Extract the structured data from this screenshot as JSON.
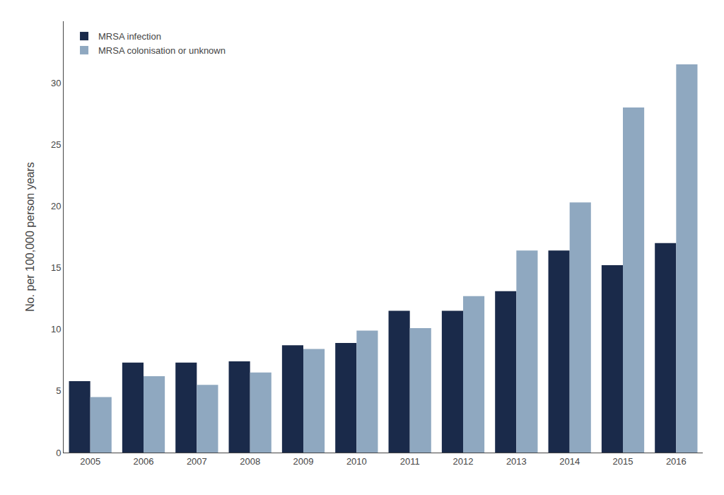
{
  "chart_data": {
    "type": "bar",
    "categories": [
      "2005",
      "2006",
      "2007",
      "2008",
      "2009",
      "2010",
      "2011",
      "2012",
      "2013",
      "2014",
      "2015",
      "2016"
    ],
    "series": [
      {
        "name": "MRSA infection",
        "color": "#1a2a4a",
        "values": [
          5.8,
          7.3,
          7.3,
          7.4,
          8.7,
          8.9,
          11.5,
          11.5,
          13.1,
          16.4,
          15.2,
          17.0
        ]
      },
      {
        "name": "MRSA colonisation or unknown",
        "color": "#8fa8c0",
        "values": [
          4.5,
          6.2,
          5.5,
          6.5,
          8.4,
          9.9,
          10.1,
          12.7,
          16.4,
          20.3,
          28.0,
          31.5
        ]
      }
    ],
    "ylabel": "No. per 100,000 person years",
    "ylim": [
      0,
      35
    ],
    "yticks": [
      0,
      5,
      10,
      15,
      20,
      25,
      30
    ],
    "grid": false,
    "legend": "upper left"
  }
}
